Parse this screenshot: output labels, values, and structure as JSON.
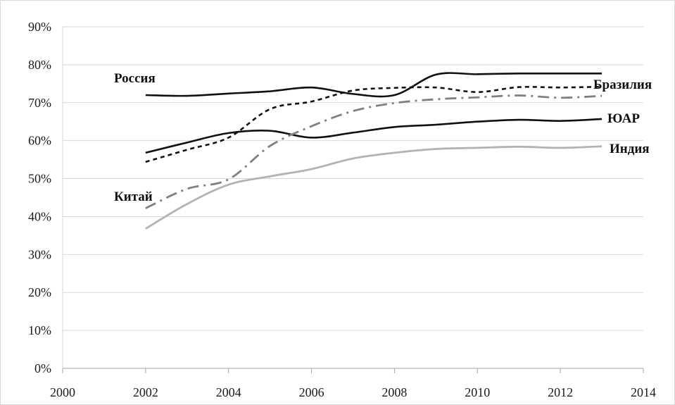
{
  "chart_data": {
    "type": "line",
    "x": [
      2002,
      2003,
      2004,
      2005,
      2006,
      2007,
      2008,
      2009,
      2010,
      2011,
      2012,
      2013
    ],
    "xlim": [
      2000,
      2014
    ],
    "ylim": [
      0,
      90
    ],
    "x_ticks": [
      2000,
      2002,
      2004,
      2006,
      2008,
      2010,
      2012,
      2014
    ],
    "y_ticks": [
      0,
      10,
      20,
      30,
      40,
      50,
      60,
      70,
      80,
      90
    ],
    "y_tick_labels": [
      "0%",
      "10%",
      "20%",
      "30%",
      "40%",
      "50%",
      "60%",
      "70%",
      "80%",
      "90%"
    ],
    "grid": true,
    "series": [
      {
        "name": "Россия",
        "color": "#111111",
        "values": [
          72.0,
          71.8,
          72.4,
          73.0,
          74.0,
          72.3,
          72.0,
          77.4,
          77.5,
          77.7,
          77.7,
          77.7
        ]
      },
      {
        "name": "Бразилия",
        "color": "#111111",
        "values": [
          54.4,
          57.6,
          60.8,
          68.3,
          70.3,
          73.2,
          73.9,
          74.0,
          72.8,
          74.1,
          74.0,
          74.2
        ]
      },
      {
        "name": "ЮАР",
        "color": "#111111",
        "values": [
          56.8,
          59.5,
          62.0,
          62.6,
          60.8,
          62.1,
          63.6,
          64.2,
          65.0,
          65.5,
          65.2,
          65.7
        ]
      },
      {
        "name": "Индия",
        "color": "#b3b3b3",
        "values": [
          36.8,
          43.3,
          48.4,
          50.6,
          52.5,
          55.3,
          56.8,
          57.8,
          58.1,
          58.4,
          58.1,
          58.5
        ]
      },
      {
        "name": "Китай",
        "color": "#808080",
        "values": [
          42.2,
          47.3,
          49.8,
          58.6,
          63.8,
          67.8,
          69.9,
          70.9,
          71.4,
          71.9,
          71.3,
          71.8
        ]
      }
    ]
  }
}
